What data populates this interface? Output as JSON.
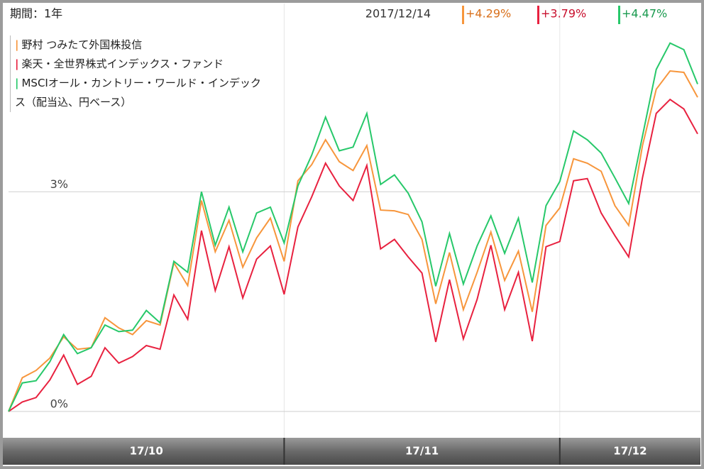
{
  "chart_data": {
    "type": "line",
    "period": "期間：1年",
    "date": "2017/12/14",
    "ylim": [
      -0.34,
      5.57
    ],
    "yticks": [
      {
        "value": 0,
        "label": "0%"
      },
      {
        "value": 3,
        "label": "3%"
      }
    ],
    "grid": true,
    "categories": [
      null,
      null,
      null,
      null,
      null,
      null,
      null,
      null,
      null,
      null,
      null,
      null,
      null,
      null,
      null,
      null,
      null,
      null,
      null,
      null,
      null,
      null,
      null,
      null,
      null,
      null,
      null,
      null,
      null,
      null,
      null,
      null,
      null,
      null,
      null,
      null,
      null,
      null,
      null,
      null,
      null,
      null,
      null,
      null,
      null,
      null,
      null,
      null,
      null,
      null,
      null
    ],
    "months": [
      "17/10",
      "17/11",
      "17/12"
    ],
    "month_starts": [
      0,
      20,
      40
    ],
    "series": [
      {
        "name": "野村 つみたて外国株投信",
        "color": "#f7963c",
        "last_label": "+4.29%",
        "values": [
          0,
          0.46,
          0.56,
          0.73,
          1.02,
          0.85,
          0.87,
          1.28,
          1.14,
          1.05,
          1.24,
          1.18,
          2.03,
          1.72,
          2.88,
          2.18,
          2.61,
          1.97,
          2.37,
          2.64,
          2.05,
          3.15,
          3.37,
          3.71,
          3.41,
          3.29,
          3.63,
          2.75,
          2.74,
          2.69,
          2.35,
          1.47,
          2.17,
          1.39,
          1.9,
          2.45,
          1.79,
          2.19,
          1.36,
          2.54,
          2.78,
          3.45,
          3.39,
          3.28,
          2.81,
          2.54,
          3.63,
          4.4,
          4.65,
          4.63,
          4.29
        ]
      },
      {
        "name": "楽天・全世界株式インデックス・ファンド",
        "color": "#e8213f",
        "last_label": "+3.79%",
        "values": [
          0,
          0.13,
          0.19,
          0.43,
          0.77,
          0.37,
          0.48,
          0.87,
          0.66,
          0.75,
          0.9,
          0.85,
          1.59,
          1.26,
          2.47,
          1.65,
          2.25,
          1.55,
          2.08,
          2.26,
          1.6,
          2.52,
          2.93,
          3.39,
          3.08,
          2.88,
          3.36,
          2.22,
          2.35,
          2.11,
          1.89,
          0.95,
          1.8,
          0.99,
          1.53,
          2.27,
          1.39,
          1.9,
          0.96,
          2.25,
          2.32,
          3.15,
          3.18,
          2.71,
          2.4,
          2.11,
          3.19,
          4.07,
          4.26,
          4.13,
          3.79
        ]
      },
      {
        "name": "MSCIオール・カントリー・ワールド・インデックス（配当込、円ベース）",
        "color": "#27c86a",
        "last_label": "+4.47%",
        "values": [
          0,
          0.39,
          0.42,
          0.68,
          1.05,
          0.79,
          0.87,
          1.18,
          1.09,
          1.11,
          1.38,
          1.21,
          2.05,
          1.9,
          3.0,
          2.27,
          2.79,
          2.18,
          2.71,
          2.79,
          2.3,
          3.08,
          3.5,
          4.02,
          3.56,
          3.61,
          4.07,
          3.1,
          3.23,
          2.98,
          2.59,
          1.71,
          2.43,
          1.74,
          2.26,
          2.67,
          2.16,
          2.64,
          1.76,
          2.81,
          3.14,
          3.83,
          3.71,
          3.53,
          3.19,
          2.84,
          3.76,
          4.67,
          5.03,
          4.94,
          4.47
        ]
      }
    ]
  }
}
